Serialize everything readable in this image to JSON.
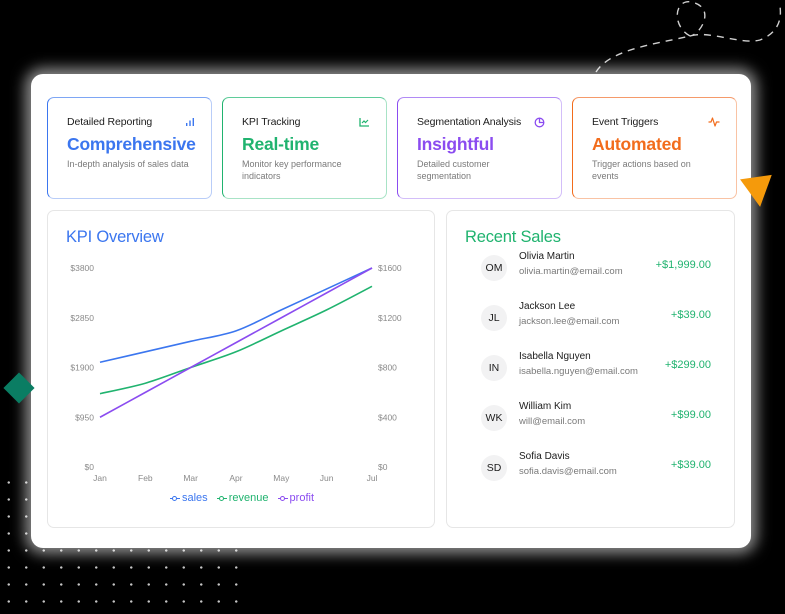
{
  "colors": {
    "blue": "#3b76ef",
    "green": "#20b36f",
    "purple": "#8b4cf0",
    "orange": "#f26c1c",
    "decor_green": "#0a7d63",
    "decor_orange": "#f59a0b"
  },
  "cards": [
    {
      "title": "Detailed Reporting",
      "value": "Comprehensive",
      "description": "In-depth analysis of sales data",
      "icon": "bar-chart-icon",
      "color": "#3b76ef"
    },
    {
      "title": "KPI Tracking",
      "value": "Real-time",
      "description": "Monitor key performance indicators",
      "icon": "line-chart-icon",
      "color": "#20b36f"
    },
    {
      "title": "Segmentation Analysis",
      "value": "Insightful",
      "description": "Detailed customer segmentation",
      "icon": "pie-chart-icon",
      "color": "#8b4cf0"
    },
    {
      "title": "Event Triggers",
      "value": "Automated",
      "description": "Trigger actions based on events",
      "icon": "activity-icon",
      "color": "#f26c1c"
    }
  ],
  "kpi": {
    "title": "KPI Overview",
    "legend": [
      "sales",
      "revenue",
      "profit"
    ]
  },
  "chart_data": {
    "type": "line",
    "title": "KPI Overview",
    "categories": [
      "Jan",
      "Feb",
      "Mar",
      "Apr",
      "May",
      "Jun",
      "Jul"
    ],
    "left_axis": {
      "ticks": [
        "$0",
        "$950",
        "$1900",
        "$2850",
        "$3800"
      ],
      "range": [
        0,
        3800
      ]
    },
    "right_axis": {
      "ticks": [
        "$0",
        "$400",
        "$800",
        "$1200",
        "$1600"
      ],
      "range": [
        0,
        1600
      ]
    },
    "series": [
      {
        "name": "sales",
        "axis": "left",
        "color": "#3b76ef",
        "values": [
          2000,
          2200,
          2400,
          2600,
          3000,
          3400,
          3800
        ]
      },
      {
        "name": "revenue",
        "axis": "left",
        "color": "#20b36f",
        "values": [
          1400,
          1600,
          1900,
          2200,
          2600,
          3000,
          3450
        ]
      },
      {
        "name": "profit",
        "axis": "right",
        "color": "#8b4cf0",
        "values": [
          400,
          600,
          800,
          1000,
          1200,
          1400,
          1600
        ]
      }
    ],
    "grid": false,
    "legend_position": "bottom"
  },
  "recent_sales": {
    "title": "Recent Sales",
    "items": [
      {
        "initials": "OM",
        "name": "Olivia Martin",
        "email": "olivia.martin@email.com",
        "amount": "+$1,999.00"
      },
      {
        "initials": "JL",
        "name": "Jackson Lee",
        "email": "jackson.lee@email.com",
        "amount": "+$39.00"
      },
      {
        "initials": "IN",
        "name": "Isabella Nguyen",
        "email": "isabella.nguyen@email.com",
        "amount": "+$299.00"
      },
      {
        "initials": "WK",
        "name": "William Kim",
        "email": "will@email.com",
        "amount": "+$99.00"
      },
      {
        "initials": "SD",
        "name": "Sofia Davis",
        "email": "sofia.davis@email.com",
        "amount": "+$39.00"
      }
    ]
  }
}
